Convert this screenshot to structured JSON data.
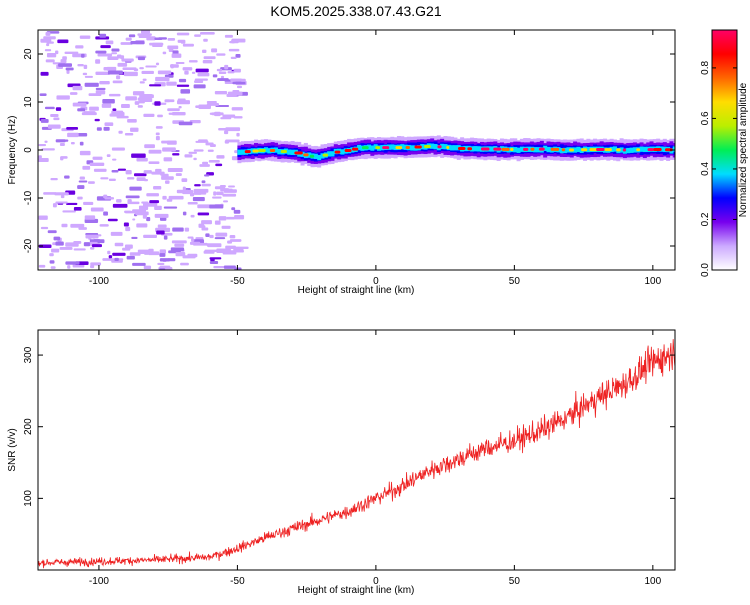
{
  "page": {
    "title": "KOM5.2025.338.07.43.G21"
  },
  "colors": {
    "snr_line": "#ee2222",
    "frame": "#000000",
    "spectrogram_background": "#ffffff"
  },
  "chart_data": [
    {
      "name": "spectrogram",
      "type": "heatmap",
      "title": "KOM5.2025.338.07.43.G21",
      "xlabel": "Height of straight line (km)",
      "ylabel": "Frequency (Hz)",
      "xlim": [
        -122,
        108
      ],
      "ylim": [
        -25,
        25
      ],
      "xticks": [
        -100,
        -50,
        0,
        50,
        100
      ],
      "xtick_labels": [
        "-100",
        "-50",
        "0",
        "50",
        "100"
      ],
      "yticks": [
        -20,
        -10,
        0,
        10,
        20
      ],
      "ytick_labels": [
        "-20",
        "-10",
        "0",
        "10",
        "20"
      ],
      "noise_region_km": [
        -122,
        -50
      ],
      "signal_region_km": [
        -50,
        108
      ],
      "signal_frequency_trace": {
        "x_km": [
          -50,
          -40,
          -30,
          -22,
          -15,
          -5,
          0,
          10,
          20,
          30,
          40,
          50,
          60,
          70,
          80,
          90,
          100,
          108
        ],
        "freq_hz": [
          -0.5,
          0.0,
          -0.5,
          -1.5,
          -0.5,
          0.5,
          0.5,
          0.5,
          0.8,
          0.3,
          0.2,
          0.1,
          0.2,
          0.0,
          0.1,
          0.0,
          0.1,
          0.0
        ]
      },
      "colorbar": {
        "label": "Normalized spectral amplitude",
        "range": [
          0.0,
          0.95
        ],
        "ticks": [
          0.0,
          0.2,
          0.4,
          0.6,
          0.8
        ],
        "tick_labels": [
          "0.0",
          "0.2",
          "0.4",
          "0.6",
          "0.8"
        ],
        "colors": [
          "#ffffff",
          "#ccaaff",
          "#7700ee",
          "#0000ff",
          "#00ddff",
          "#00ee55",
          "#bbee00",
          "#ffdd00",
          "#ff6600",
          "#ff0000",
          "#ff0066"
        ]
      }
    },
    {
      "name": "snr",
      "type": "line",
      "xlabel": "Height of straight line (km)",
      "ylabel": "SNR (v/v)",
      "xlim": [
        -122,
        108
      ],
      "ylim": [
        0,
        335
      ],
      "xticks": [
        -100,
        -50,
        0,
        50,
        100
      ],
      "xtick_labels": [
        "-100",
        "-50",
        "0",
        "50",
        "100"
      ],
      "yticks": [
        100,
        200,
        300
      ],
      "ytick_labels": [
        "100",
        "200",
        "300"
      ],
      "trend": {
        "x_km": [
          -122,
          -100,
          -80,
          -60,
          -50,
          -40,
          -30,
          -20,
          -10,
          0,
          10,
          20,
          30,
          40,
          50,
          60,
          70,
          80,
          90,
          100,
          108
        ],
        "snr": [
          10,
          12,
          14,
          18,
          30,
          45,
          58,
          70,
          82,
          100,
          118,
          140,
          155,
          170,
          180,
          195,
          215,
          240,
          260,
          290,
          305
        ]
      },
      "noise_amplitude": 14
    }
  ]
}
